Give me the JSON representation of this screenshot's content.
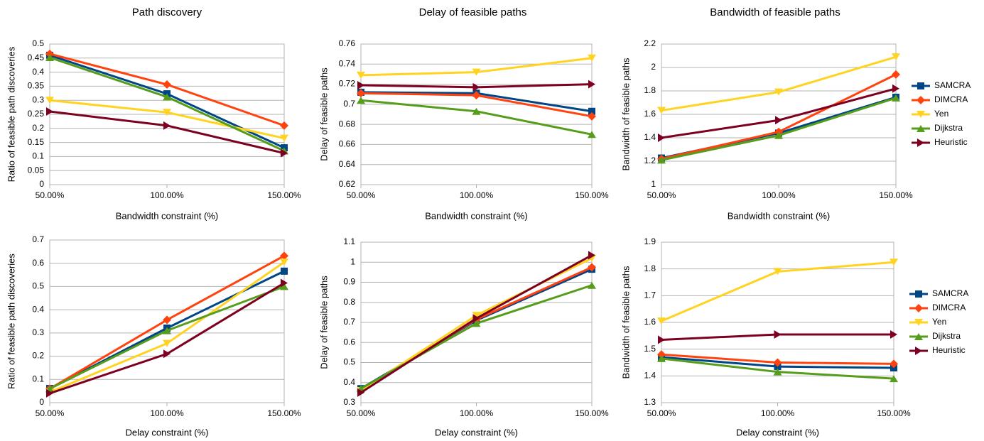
{
  "chart_data": [
    {
      "type": "line",
      "title": "Path discovery",
      "x_label": "Bandwidth constraint (%)",
      "y_label": "Ratio of feasible path discoveries",
      "categories": [
        "50.00%",
        "100.00%",
        "150.00%"
      ],
      "ylim": [
        0,
        0.5
      ],
      "yticks": [
        0,
        0.05,
        0.1,
        0.15,
        0.2,
        0.25,
        0.3,
        0.35,
        0.4,
        0.45,
        0.5
      ],
      "grid": true,
      "series": [
        {
          "name": "SAMCRA",
          "color": "#004586",
          "marker": "square",
          "values": [
            0.46,
            0.323,
            0.131
          ]
        },
        {
          "name": "DIMCRA",
          "color": "#ff420e",
          "marker": "diamond",
          "values": [
            0.465,
            0.356,
            0.21
          ]
        },
        {
          "name": "Yen",
          "color": "#ffd320",
          "marker": "triangle-down",
          "values": [
            0.3,
            0.257,
            0.165
          ]
        },
        {
          "name": "Dijkstra",
          "color": "#579d1c",
          "marker": "triangle-up",
          "values": [
            0.452,
            0.312,
            0.12
          ]
        },
        {
          "name": "Heuristic",
          "color": "#7e0021",
          "marker": "triangle-right",
          "values": [
            0.26,
            0.21,
            0.112
          ]
        }
      ]
    },
    {
      "type": "line",
      "title": "Delay of feasible paths",
      "x_label": "Bandwidth constraint (%)",
      "y_label": "Delay of feasible paths",
      "categories": [
        "50.00%",
        "100.00%",
        "150.00%"
      ],
      "ylim": [
        0.62,
        0.76
      ],
      "yticks": [
        0.62,
        0.64,
        0.66,
        0.68,
        0.7,
        0.72,
        0.74,
        0.76
      ],
      "grid": true,
      "series": [
        {
          "name": "SAMCRA",
          "color": "#004586",
          "marker": "square",
          "values": [
            0.712,
            0.711,
            0.693
          ]
        },
        {
          "name": "DIMCRA",
          "color": "#ff420e",
          "marker": "diamond",
          "values": [
            0.711,
            0.709,
            0.688
          ]
        },
        {
          "name": "Yen",
          "color": "#ffd320",
          "marker": "triangle-down",
          "values": [
            0.729,
            0.732,
            0.746
          ]
        },
        {
          "name": "Dijkstra",
          "color": "#579d1c",
          "marker": "triangle-up",
          "values": [
            0.704,
            0.693,
            0.67
          ]
        },
        {
          "name": "Heuristic",
          "color": "#7e0021",
          "marker": "triangle-right",
          "values": [
            0.719,
            0.717,
            0.72
          ]
        }
      ]
    },
    {
      "type": "line",
      "title": "Bandwidth of feasible paths",
      "x_label": "Bandwidth constraint (%)",
      "y_label": "Bandwidth of feasible paths",
      "categories": [
        "50.00%",
        "100.00%",
        "150.00%"
      ],
      "ylim": [
        1,
        2.2
      ],
      "yticks": [
        1,
        1.2,
        1.4,
        1.6,
        1.8,
        2,
        2.2
      ],
      "grid": true,
      "legend": "right",
      "series": [
        {
          "name": "SAMCRA",
          "color": "#004586",
          "marker": "square",
          "values": [
            1.227,
            1.44,
            1.746
          ]
        },
        {
          "name": "DIMCRA",
          "color": "#ff420e",
          "marker": "diamond",
          "values": [
            1.22,
            1.45,
            1.94
          ]
        },
        {
          "name": "Yen",
          "color": "#ffd320",
          "marker": "triangle-down",
          "values": [
            1.633,
            1.79,
            2.09
          ]
        },
        {
          "name": "Dijkstra",
          "color": "#579d1c",
          "marker": "triangle-up",
          "values": [
            1.21,
            1.42,
            1.74
          ]
        },
        {
          "name": "Heuristic",
          "color": "#7e0021",
          "marker": "triangle-right",
          "values": [
            1.4,
            1.55,
            1.82
          ]
        }
      ]
    },
    {
      "type": "line",
      "x_label": "Delay constraint (%)",
      "y_label": "Ratio of feasible path discoveries",
      "categories": [
        "50.00%",
        "100.00%",
        "150.00%"
      ],
      "ylim": [
        0,
        0.7
      ],
      "yticks": [
        0,
        0.1,
        0.2,
        0.3,
        0.4,
        0.5,
        0.6,
        0.7
      ],
      "grid": true,
      "series": [
        {
          "name": "SAMCRA",
          "color": "#004586",
          "marker": "square",
          "values": [
            0.061,
            0.321,
            0.566
          ]
        },
        {
          "name": "DIMCRA",
          "color": "#ff420e",
          "marker": "diamond",
          "values": [
            0.06,
            0.356,
            0.632
          ]
        },
        {
          "name": "Yen",
          "color": "#ffd320",
          "marker": "triangle-down",
          "values": [
            0.045,
            0.255,
            0.605
          ]
        },
        {
          "name": "Dijkstra",
          "color": "#579d1c",
          "marker": "triangle-up",
          "values": [
            0.06,
            0.31,
            0.5
          ]
        },
        {
          "name": "Heuristic",
          "color": "#7e0021",
          "marker": "triangle-right",
          "values": [
            0.04,
            0.21,
            0.515
          ]
        }
      ]
    },
    {
      "type": "line",
      "x_label": "Delay constraint (%)",
      "y_label": "Delay of feasible paths",
      "categories": [
        "50.00%",
        "100.00%",
        "150.00%"
      ],
      "ylim": [
        0.3,
        1.1
      ],
      "yticks": [
        0.3,
        0.4,
        0.5,
        0.6,
        0.7,
        0.8,
        0.9,
        1,
        1.1
      ],
      "grid": true,
      "series": [
        {
          "name": "SAMCRA",
          "color": "#004586",
          "marker": "square",
          "values": [
            0.37,
            0.71,
            0.965
          ]
        },
        {
          "name": "DIMCRA",
          "color": "#ff420e",
          "marker": "diamond",
          "values": [
            0.36,
            0.715,
            0.975
          ]
        },
        {
          "name": "Yen",
          "color": "#ffd320",
          "marker": "triangle-down",
          "values": [
            0.36,
            0.735,
            1.02
          ]
        },
        {
          "name": "Dijkstra",
          "color": "#579d1c",
          "marker": "triangle-up",
          "values": [
            0.37,
            0.695,
            0.885
          ]
        },
        {
          "name": "Heuristic",
          "color": "#7e0021",
          "marker": "triangle-right",
          "values": [
            0.35,
            0.72,
            1.035
          ]
        }
      ]
    },
    {
      "type": "line",
      "x_label": "Delay constraint (%)",
      "y_label": "Bandwidth of feasible paths",
      "categories": [
        "50.00%",
        "100.00%",
        "150.00%"
      ],
      "ylim": [
        1.3,
        1.9
      ],
      "yticks": [
        1.3,
        1.4,
        1.5,
        1.6,
        1.7,
        1.8,
        1.9
      ],
      "grid": true,
      "legend": "right",
      "series": [
        {
          "name": "SAMCRA",
          "color": "#004586",
          "marker": "square",
          "values": [
            1.47,
            1.435,
            1.43
          ]
        },
        {
          "name": "DIMCRA",
          "color": "#ff420e",
          "marker": "diamond",
          "values": [
            1.48,
            1.45,
            1.445
          ]
        },
        {
          "name": "Yen",
          "color": "#ffd320",
          "marker": "triangle-down",
          "values": [
            1.605,
            1.79,
            1.825
          ]
        },
        {
          "name": "Dijkstra",
          "color": "#579d1c",
          "marker": "triangle-up",
          "values": [
            1.465,
            1.415,
            1.39
          ]
        },
        {
          "name": "Heuristic",
          "color": "#7e0021",
          "marker": "triangle-right",
          "values": [
            1.535,
            1.555,
            1.555
          ]
        }
      ]
    }
  ]
}
